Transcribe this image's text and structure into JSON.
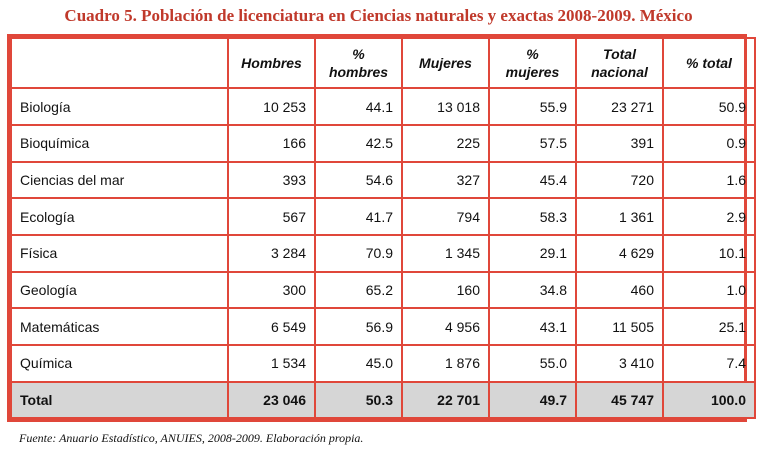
{
  "title": "Cuadro 5. Población de licenciatura en Ciencias naturales y exactas 2008-2009. México",
  "columns": {
    "blank": "",
    "hombres": "Hombres",
    "pct_hombres": "% hombres",
    "mujeres": "Mujeres",
    "pct_mujeres": "% mujeres",
    "total_nacional": "Total nacional",
    "pct_total": "% total"
  },
  "rows": [
    {
      "name": "Biología",
      "hombres": "10 253",
      "pct_hombres": "44.1",
      "mujeres": "13 018",
      "pct_mujeres": "55.9",
      "total": "23 271",
      "pct_total": "50.9"
    },
    {
      "name": "Bioquímica",
      "hombres": "166",
      "pct_hombres": "42.5",
      "mujeres": "225",
      "pct_mujeres": "57.5",
      "total": "391",
      "pct_total": "0.9"
    },
    {
      "name": "Ciencias del mar",
      "hombres": "393",
      "pct_hombres": "54.6",
      "mujeres": "327",
      "pct_mujeres": "45.4",
      "total": "720",
      "pct_total": "1.6"
    },
    {
      "name": "Ecología",
      "hombres": "567",
      "pct_hombres": "41.7",
      "mujeres": "794",
      "pct_mujeres": "58.3",
      "total": "1 361",
      "pct_total": "2.9"
    },
    {
      "name": "Física",
      "hombres": "3 284",
      "pct_hombres": "70.9",
      "mujeres": "1 345",
      "pct_mujeres": "29.1",
      "total": "4 629",
      "pct_total": "10.1"
    },
    {
      "name": "Geología",
      "hombres": "300",
      "pct_hombres": "65.2",
      "mujeres": "160",
      "pct_mujeres": "34.8",
      "total": "460",
      "pct_total": "1.0"
    },
    {
      "name": "Matemáticas",
      "hombres": "6 549",
      "pct_hombres": "56.9",
      "mujeres": "4 956",
      "pct_mujeres": "43.1",
      "total": "11 505",
      "pct_total": "25.1"
    },
    {
      "name": "Química",
      "hombres": "1 534",
      "pct_hombres": "45.0",
      "mujeres": "1 876",
      "pct_mujeres": "55.0",
      "total": "3 410",
      "pct_total": "7.4"
    }
  ],
  "total_row": {
    "name": "Total",
    "hombres": "23 046",
    "pct_hombres": "50.3",
    "mujeres": "22 701",
    "pct_mujeres": "49.7",
    "total": "45 747",
    "pct_total": "100.0"
  },
  "source": "Fuente: Anuario Estadístico, ANUIES, 2008-2009. Elaboración propia."
}
